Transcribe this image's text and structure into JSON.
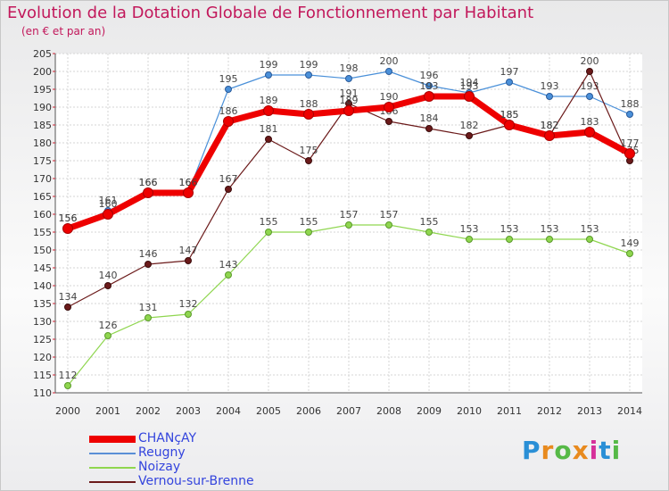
{
  "chart_data": {
    "type": "line",
    "title": "Evolution de la Dotation Globale de Fonctionnement par Habitant",
    "subtitle": "(en € et par an)",
    "xlabel": "",
    "ylabel": "",
    "ylim": [
      110,
      205
    ],
    "y_tick_step": 5,
    "categories": [
      "2000",
      "2001",
      "2002",
      "2003",
      "2004",
      "2005",
      "2006",
      "2007",
      "2008",
      "2009",
      "2010",
      "2011",
      "2012",
      "2013",
      "2014"
    ],
    "series": [
      {
        "name": "Reugny",
        "color": "#4a90d9",
        "values": [
          156,
          161,
          166,
          166,
          195,
          199,
          199,
          198,
          200,
          196,
          194,
          197,
          193,
          193,
          188
        ]
      },
      {
        "name": "Noizay",
        "color": "#8fd64f",
        "values": [
          112,
          126,
          131,
          132,
          143,
          155,
          155,
          157,
          157,
          155,
          153,
          153,
          153,
          153,
          149
        ]
      },
      {
        "name": "Vernou-sur-Brenne",
        "color": "#6b1a1a",
        "values": [
          134,
          140,
          146,
          147,
          167,
          181,
          175,
          191,
          186,
          184,
          182,
          185,
          182,
          200,
          175
        ]
      },
      {
        "name": "CHANçAY",
        "color": "#ee0000",
        "values": [
          156,
          160,
          166,
          166,
          186,
          189,
          188,
          189,
          190,
          193,
          193,
          185,
          182,
          183,
          177
        ]
      }
    ],
    "legend_order": [
      "CHANçAY",
      "Reugny",
      "Noizay",
      "Vernou-sur-Brenne"
    ],
    "legend_colors": {
      "CHANçAY": "#ee0000",
      "Reugny": "#5a8fd6",
      "Noizay": "#8fd64f",
      "Vernou-sur-Brenne": "#6b1a1a"
    },
    "legend_text_colors": {
      "CHANçAY": "#3344dd",
      "Reugny": "#3344dd",
      "Noizay": "#3344dd",
      "Vernou-sur-Brenne": "#3344dd"
    }
  },
  "logo": {
    "letters": [
      "P",
      "r",
      "o",
      "x",
      "i",
      "t",
      "i"
    ],
    "colors": [
      "#2a8fd6",
      "#e88a1e",
      "#56b947",
      "#e88a1e",
      "#d6309a",
      "#2a8fd6",
      "#56b947"
    ]
  }
}
